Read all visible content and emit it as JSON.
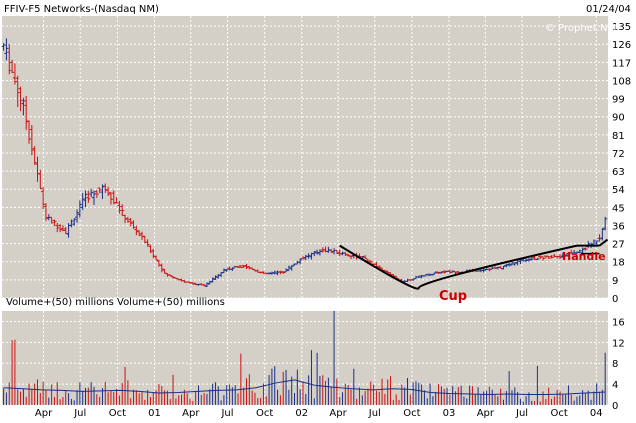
{
  "header": {
    "title": "FFIV-F5 Networks-(Nasdaq NM)",
    "date": "01/24/04",
    "watermark": "© Prophet.Net"
  },
  "annotations": {
    "cup": "Cup",
    "handle": "Handle"
  },
  "volume_panel": {
    "label_1": "Volume+(50) millions",
    "label_2": "Volume+(50) millions"
  },
  "colors": {
    "panel_bg": "#d4d0c8",
    "up": "#1a2f8a",
    "down": "#cc1111",
    "annotation": "#cc0000",
    "pattern_line": "#000000"
  },
  "chart_data": [
    {
      "type": "line",
      "title": "FFIV-F5 Networks-(Nasdaq NM)",
      "x_ticks": [
        "Apr",
        "Jul",
        "Oct",
        "01",
        "Apr",
        "Jul",
        "Oct",
        "02",
        "Apr",
        "Jul",
        "Oct",
        "03",
        "Apr",
        "Jul",
        "Oct",
        "04"
      ],
      "y_ticks": [
        0,
        9,
        18,
        27,
        36,
        45,
        54,
        63,
        72,
        81,
        90,
        99,
        108,
        117,
        126,
        135
      ],
      "ylim": [
        0,
        140
      ],
      "x_dates": [
        "1999-12-24",
        "2000-02-11",
        "2000-04-07",
        "2000-05-26",
        "2000-07-14",
        "2000-09-01",
        "2000-10-20",
        "2000-12-08",
        "2001-01-26",
        "2001-03-16",
        "2001-05-04",
        "2001-06-22",
        "2001-08-10",
        "2001-09-28",
        "2001-11-16",
        "2002-01-04",
        "2002-02-22",
        "2002-04-12",
        "2002-05-31",
        "2002-07-19",
        "2002-09-06",
        "2002-10-25",
        "2002-12-13",
        "2003-01-31",
        "2003-03-21",
        "2003-05-09",
        "2003-06-27",
        "2003-08-15",
        "2003-10-03",
        "2003-11-21",
        "2004-01-09",
        "2004-01-23"
      ],
      "close": [
        125,
        95,
        40,
        33,
        50,
        55,
        40,
        28,
        12,
        8,
        6,
        14,
        16,
        12,
        13,
        20,
        24,
        22,
        20,
        14,
        8,
        11,
        13,
        13,
        14,
        15,
        19,
        20,
        21,
        23,
        30,
        40
      ],
      "cup_line": [
        [
          "2002-04-05",
          26
        ],
        [
          "2002-10-18",
          5
        ],
        [
          "2003-11-14",
          26
        ]
      ],
      "handle_line": [
        [
          "2003-11-14",
          26
        ],
        [
          "2004-01-09",
          26
        ]
      ],
      "grid": true,
      "axis_side": "right"
    },
    {
      "type": "bar",
      "title": "Volume+(50) millions",
      "y_ticks": [
        0,
        4,
        8,
        12,
        16
      ],
      "ylim": [
        0,
        18
      ],
      "volume_avg": [
        3.3,
        3.1,
        2.9,
        2.8,
        2.6,
        2.7,
        2.8,
        2.6,
        2.3,
        2.4,
        2.6,
        2.8,
        2.9,
        3.3,
        4.2,
        4.8,
        3.8,
        3.4,
        3.1,
        2.9,
        3.1,
        3.0,
        2.4,
        2.2,
        2.1,
        2.0,
        2.1,
        2.0,
        2.0,
        2.1,
        2.3,
        2.5
      ],
      "volume_peaks": [
        [
          "2000-01-20",
          12.5
        ],
        [
          "2002-03-22",
          18
        ],
        [
          "2002-02-08",
          10
        ],
        [
          "2004-01-23",
          10
        ]
      ],
      "grid": true,
      "axis_side": "right"
    }
  ]
}
